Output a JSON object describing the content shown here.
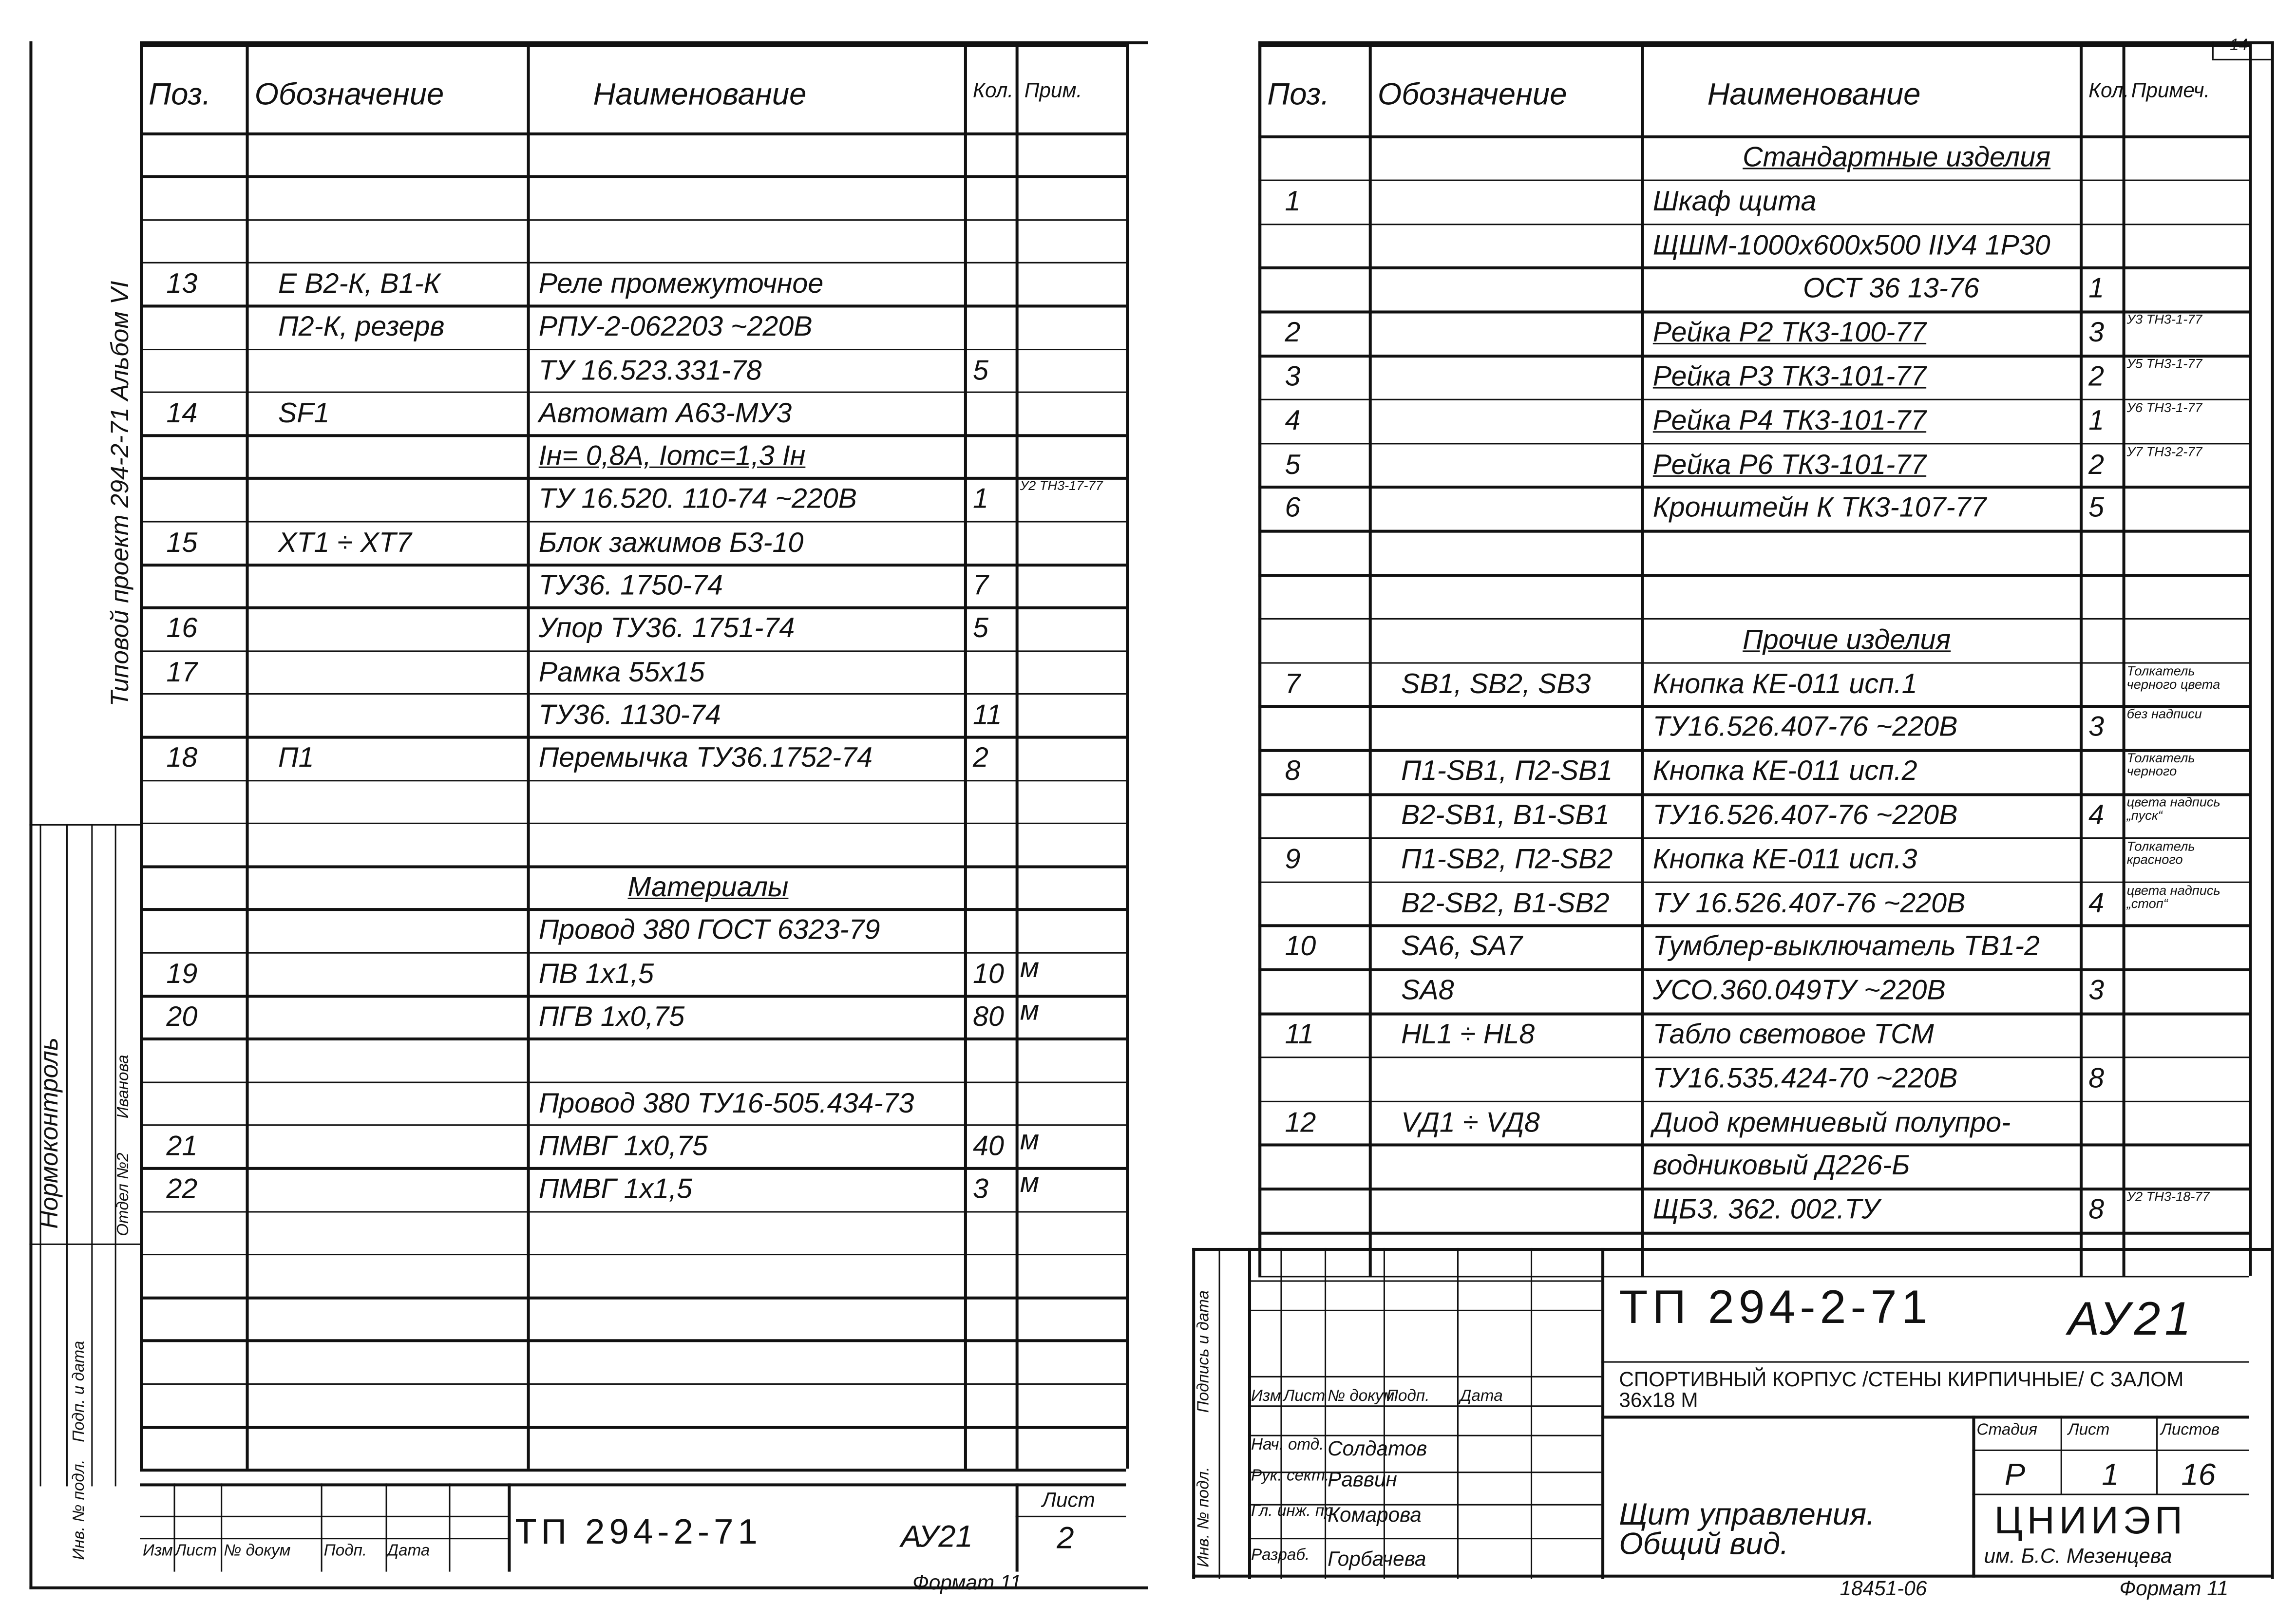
{
  "left_sheet": {
    "margin_title": "Типовой проект 294-2-71 Альбом VI",
    "headers": [
      "Поз.",
      "Обозначение",
      "Наименование",
      "Кол.",
      "Прим."
    ],
    "rows": [
      {
        "r": 3,
        "pos": "13",
        "code": "Е  В2-К, В1-К",
        "name": "Реле промежуточное"
      },
      {
        "r": 4,
        "code": "П2-К, резерв",
        "name": "РПУ-2-062203     ~220В"
      },
      {
        "r": 5,
        "name": "ТУ 16.523.331-78",
        "qty": "5"
      },
      {
        "r": 6,
        "pos": "14",
        "code": "SF1",
        "name": "Автомат  А63-МУ3"
      },
      {
        "r": 7,
        "name": "Iн= 0,8А,  Iотс=1,3 Iн",
        "u": true
      },
      {
        "r": 8,
        "name": "ТУ 16.520. 110-74  ~220В",
        "qty": "1",
        "note": "У2 ТН3-17-77"
      },
      {
        "r": 9,
        "pos": "15",
        "code": "ХТ1 ÷ ХТ7",
        "name": "Блок зажимов Б3-10"
      },
      {
        "r": 10,
        "name": "ТУ36. 1750-74",
        "qty": "7"
      },
      {
        "r": 11,
        "pos": "16",
        "name": "Упор ТУ36. 1751-74",
        "qty": "5"
      },
      {
        "r": 12,
        "pos": "17",
        "name": "Рамка 55х15"
      },
      {
        "r": 13,
        "name": "ТУ36. 1130-74",
        "qty": "11"
      },
      {
        "r": 14,
        "pos": "18",
        "code": "П1",
        "name": "Перемычка ТУ36.1752-74",
        "qty": "2"
      },
      {
        "r": 17,
        "name": "Материалы",
        "u": true,
        "center": true
      },
      {
        "r": 18,
        "name": "Провод 380 ГОСТ 6323-79"
      },
      {
        "r": 19,
        "pos": "19",
        "name": "ПВ 1х1,5",
        "qty": "10",
        "note": "м"
      },
      {
        "r": 20,
        "pos": "20",
        "name": "ПГВ 1х0,75",
        "qty": "80",
        "note": "м"
      },
      {
        "r": 22,
        "name": "Провод 380 ТУ16-505.434-73"
      },
      {
        "r": 23,
        "pos": "21",
        "name": "ПМВГ 1х0,75",
        "qty": "40",
        "note": "м"
      },
      {
        "r": 24,
        "pos": "22",
        "name": "ПМВГ 1х1,5",
        "qty": "3",
        "note": "м"
      }
    ],
    "side_stamp": {
      "normcontrol": "Нормоконтроль",
      "name": "Иванова",
      "dept": "Отдел №2",
      "inv": "Инв. № подл.",
      "sign": "Подп. и дата"
    },
    "title_block": {
      "cols": [
        "Изм",
        "Лист",
        "№ докум",
        "Подп.",
        "Дата"
      ],
      "code": "ТП    294-2-71",
      "mark": "АУ21",
      "sheet_label": "Лист",
      "sheet": "2"
    },
    "format": "Формат 11"
  },
  "right_sheet": {
    "page_number": "14",
    "headers": [
      "Поз.",
      "Обозначение",
      "Наименование",
      "Кол.",
      "Примеч."
    ],
    "rows": [
      {
        "r": 0,
        "name": "Стандартные изделия",
        "u": true,
        "center": true
      },
      {
        "r": 1,
        "pos": "1",
        "name": "Шкаф  щита"
      },
      {
        "r": 2,
        "name": "ЩШМ-1000х600х500 IIУ4 1Р30"
      },
      {
        "r": 3,
        "name": "ОСТ 36 13-76",
        "qty": "1",
        "right": true
      },
      {
        "r": 4,
        "pos": "2",
        "name": "Рейка Р2  ТК3-100-77",
        "qty": "3",
        "note": "У3 ТН3-1-77",
        "u": true
      },
      {
        "r": 5,
        "pos": "3",
        "name": "Рейка Р3  ТК3-101-77",
        "qty": "2",
        "note": "У5 ТН3-1-77",
        "u": true
      },
      {
        "r": 6,
        "pos": "4",
        "name": "Рейка Р4  ТК3-101-77",
        "qty": "1",
        "note": "У6 ТН3-1-77",
        "u": true
      },
      {
        "r": 7,
        "pos": "5",
        "name": "Рейка Р6  ТК3-101-77",
        "qty": "2",
        "note": "У7 ТН3-2-77",
        "u": true
      },
      {
        "r": 8,
        "pos": "6",
        "name": "Кронштейн К   ТК3-107-77",
        "qty": "5"
      },
      {
        "r": 11,
        "name": "Прочие  изделия",
        "u": true,
        "center": true
      },
      {
        "r": 12,
        "pos": "7",
        "code": "SB1, SB2, SB3",
        "name": "Кнопка КЕ-011 исп.1",
        "note": "Толкатель черного цвета"
      },
      {
        "r": 13,
        "name": "ТУ16.526.407-76   ~220В",
        "qty": "3",
        "note": "без надписи"
      },
      {
        "r": 14,
        "pos": "8",
        "code": "П1-SB1, П2-SB1",
        "name": "Кнопка  КЕ-011 исп.2",
        "note": "Толкатель черного"
      },
      {
        "r": 15,
        "code": "В2-SB1, В1-SB1",
        "name": "ТУ16.526.407-76   ~220В",
        "qty": "4",
        "note": "цвета надпись „пуск“"
      },
      {
        "r": 16,
        "pos": "9",
        "code": "П1-SB2, П2-SB2",
        "name": "Кнопка КЕ-011 исп.3",
        "note": "Толкатель красного"
      },
      {
        "r": 17,
        "code": "В2-SB2, В1-SB2",
        "name": "ТУ 16.526.407-76  ~220В",
        "qty": "4",
        "note": "цвета надпись „стоп“"
      },
      {
        "r": 18,
        "pos": "10",
        "code": "SA6,  SA7",
        "name": "Тумблер-выключатель ТВ1-2"
      },
      {
        "r": 19,
        "code": "SA8",
        "name": "УСО.360.049ТУ      ~220В",
        "qty": "3"
      },
      {
        "r": 20,
        "pos": "11",
        "code": "НL1 ÷ НL8",
        "name": "Табло световое  ТСМ"
      },
      {
        "r": 21,
        "name": "ТУ16.535.424-70 ~220В",
        "qty": "8"
      },
      {
        "r": 22,
        "pos": "12",
        "code": "VД1 ÷ VД8",
        "name": "Диод кремниевый полупро-"
      },
      {
        "r": 23,
        "name": "водниковый  Д226-Б"
      },
      {
        "r": 24,
        "name": "ЩБ3. 362. 002.ТУ",
        "qty": "8",
        "note": "У2 ТН3-18-77"
      }
    ],
    "side_stamp": {
      "sign": "Подпись и дата",
      "inv": "Инв. № подл."
    },
    "title_block": {
      "cols": [
        "Изм",
        "Лист",
        "№ докум",
        "Подп.",
        "Дата"
      ],
      "people": [
        [
          "Нач. отд.",
          "Солдатов"
        ],
        [
          "Рук. сект.",
          "Раввин"
        ],
        [
          "Гл. инж. пр.",
          "Комарова"
        ],
        [
          "Разраб.",
          "Горбачева"
        ]
      ],
      "code": "ТП   294-2-71",
      "mark": "АУ21",
      "project": "СПОРТИВНЫЙ КОРПУС /СТЕНЫ КИРПИЧНЫЕ/ С ЗАЛОМ  36х18 М",
      "drawing": "Щит управления. Общий вид.",
      "stage_label": "Стадия",
      "sheet_label": "Лист",
      "sheets_label": "Листов",
      "stage": "Р",
      "sheet": "1",
      "sheets": "16",
      "org": "ЦНИИЭП",
      "org2": "им. Б.С. Мезенцева"
    },
    "inventory": "18451-06",
    "format": "Формат 11"
  }
}
